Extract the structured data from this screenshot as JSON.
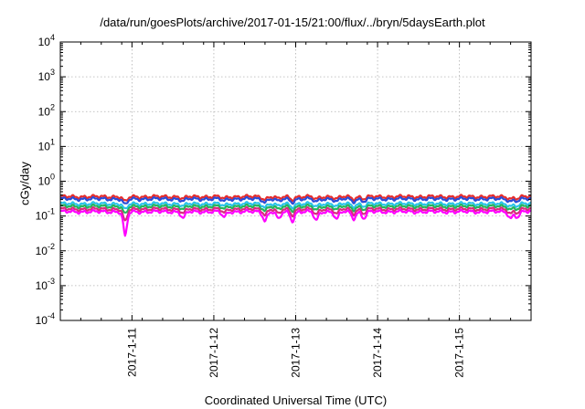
{
  "chart_data": {
    "type": "line",
    "title": "/data/run/goesPlots/archive/2017-01-15/21:00/flux/../bryn/5daysEarth.plot",
    "xlabel": "Coordinated Universal Time (UTC)",
    "ylabel": "cGy/day",
    "yscale": "log",
    "ylim": [
      0.0001,
      10000
    ],
    "xlim": [
      "2017-01-10 03:00",
      "2017-01-15 21:00"
    ],
    "grid": true,
    "legend": "none",
    "y_ticks": [
      {
        "value": 0.0001,
        "base": "10",
        "exp": "-4"
      },
      {
        "value": 0.001,
        "base": "10",
        "exp": "-3"
      },
      {
        "value": 0.01,
        "base": "10",
        "exp": "-2"
      },
      {
        "value": 0.1,
        "base": "10",
        "exp": "-1"
      },
      {
        "value": 1,
        "base": "10",
        "exp": "0"
      },
      {
        "value": 10,
        "base": "10",
        "exp": "1"
      },
      {
        "value": 100,
        "base": "10",
        "exp": "2"
      },
      {
        "value": 1000,
        "base": "10",
        "exp": "3"
      },
      {
        "value": 10000,
        "base": "10",
        "exp": "4"
      }
    ],
    "x_ticks": [
      {
        "value": "2017-01-11 00:00",
        "label": "2017-1-11"
      },
      {
        "value": "2017-01-12 00:00",
        "label": "2017-1-12"
      },
      {
        "value": "2017-01-13 00:00",
        "label": "2017-1-13"
      },
      {
        "value": "2017-01-14 00:00",
        "label": "2017-1-14"
      },
      {
        "value": "2017-01-15 00:00",
        "label": "2017-1-15"
      }
    ],
    "dips": [
      {
        "time": "2017-01-10 22:00",
        "depth": 0.82
      },
      {
        "time": "2017-01-11 15:00",
        "depth": 0.35
      },
      {
        "time": "2017-01-12 03:00",
        "depth": 0.3
      },
      {
        "time": "2017-01-12 15:00",
        "depth": 0.45
      },
      {
        "time": "2017-01-12 19:00",
        "depth": 0.4
      },
      {
        "time": "2017-01-12 23:00",
        "depth": 0.45
      },
      {
        "time": "2017-01-13 06:00",
        "depth": 0.45
      },
      {
        "time": "2017-01-13 12:00",
        "depth": 0.4
      },
      {
        "time": "2017-01-13 17:00",
        "depth": 0.35
      },
      {
        "time": "2017-01-13 20:00",
        "depth": 0.35
      },
      {
        "time": "2017-01-15 15:00",
        "depth": 0.35
      },
      {
        "time": "2017-01-15 17:00",
        "depth": 0.3
      }
    ],
    "series": [
      {
        "color": "#e52d2d",
        "base": 0.36,
        "dip_scale": 0.35
      },
      {
        "color": "#2a4bd7",
        "base": 0.31,
        "dip_scale": 0.4
      },
      {
        "color": "#29c3e8",
        "base": 0.225,
        "dip_scale": 0.4
      },
      {
        "color": "#25b45a",
        "base": 0.19,
        "dip_scale": 0.5
      },
      {
        "color": "#d82c7e",
        "base": 0.158,
        "dip_scale": 0.7
      },
      {
        "color": "#ff00ff",
        "base": 0.133,
        "dip_scale": 1.0
      }
    ]
  }
}
